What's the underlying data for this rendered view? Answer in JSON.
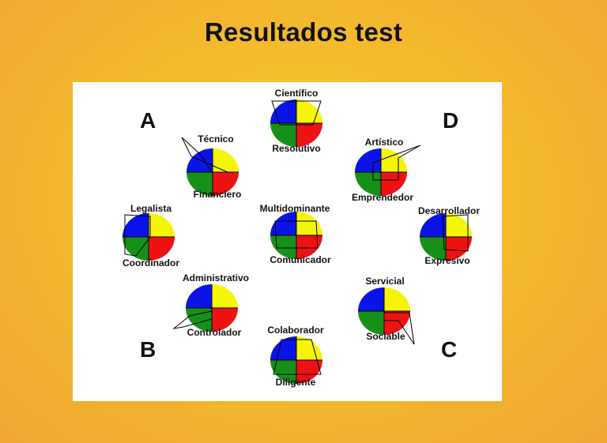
{
  "title": "Resultados test",
  "corners": {
    "a": "A",
    "b": "B",
    "c": "C",
    "d": "D"
  },
  "colors": {
    "top_left": "#0a14e8",
    "top_right": "#f5f50a",
    "bottom_left": "#17901a",
    "bottom_right": "#ee1212"
  },
  "profiles": [
    {
      "top": "Científico",
      "bottom": "Resolutivo"
    },
    {
      "top": "Técnico",
      "bottom": "Financiero"
    },
    {
      "top": "Artístico",
      "bottom": "Emprendedor"
    },
    {
      "top": "Legalista",
      "bottom": "Coordinador"
    },
    {
      "top": "Multidominante",
      "bottom": "Comunicador"
    },
    {
      "top": "Desarrollador",
      "bottom": "Expresivo"
    },
    {
      "top": "Administrativo",
      "bottom": "Controlador"
    },
    {
      "top": "Servicial",
      "bottom": "Sociable"
    },
    {
      "top": "Colaborador",
      "bottom": "Diligente"
    }
  ]
}
